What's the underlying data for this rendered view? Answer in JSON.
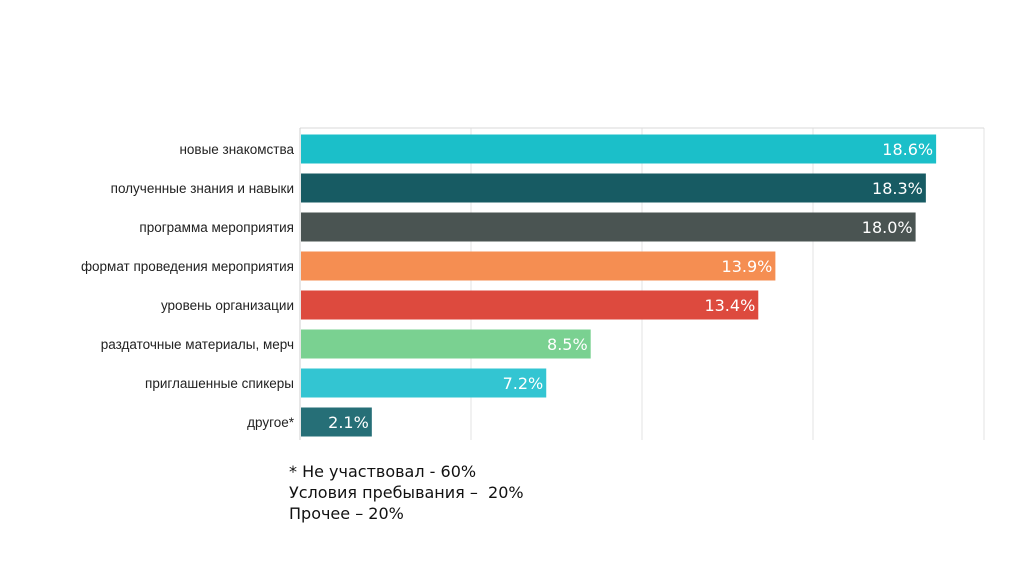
{
  "chart_data": {
    "type": "bar",
    "orientation": "horizontal",
    "categories": [
      "новые знакомства",
      "полученные знания и навыки",
      "программа мероприятия",
      "формат проведения мероприятия",
      "уровень организации",
      "раздаточные материалы, мерч",
      "приглашенные спикеры",
      "другое*"
    ],
    "values": [
      18.6,
      18.3,
      18.0,
      13.9,
      13.4,
      8.5,
      7.2,
      2.1
    ],
    "labels": [
      "18.6%",
      "18.3%",
      "18.0%",
      "13.9%",
      "13.4%",
      "8.5%",
      "7.2%",
      "2.1%"
    ],
    "colors": [
      "#1bbfc9",
      "#175b63",
      "#4a5452",
      "#f58e52",
      "#dd4a3e",
      "#7ad191",
      "#33c5d2",
      "#266f77"
    ],
    "xlim": [
      0,
      20
    ],
    "grid_x": [
      5,
      10,
      15,
      20
    ],
    "grid": true,
    "title": "",
    "xlabel": "",
    "ylabel": ""
  },
  "notes": [
    "* Не участвовал - 60%",
    "Условия пребывания –  20%",
    "Прочее – 20%"
  ]
}
